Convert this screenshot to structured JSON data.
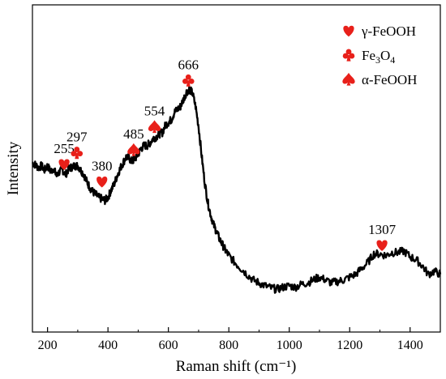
{
  "chart_data": {
    "type": "line",
    "title": "",
    "xlabel": "Raman shift (cm⁻¹)",
    "ylabel": "Intensity",
    "xlim": [
      150,
      1500
    ],
    "ylim": [
      0,
      1
    ],
    "y_ticks_labeled": false,
    "x_ticks": [
      200,
      400,
      600,
      800,
      1000,
      1200,
      1400
    ],
    "x_tick_labels": [
      "200",
      "400",
      "600",
      "800",
      "1000",
      "1200",
      "1400"
    ],
    "grid": false,
    "legend_position": "top-right",
    "marker_color": "#e8201a",
    "line_color": "#000000",
    "series": [
      {
        "x": [
          150,
          160,
          170,
          180,
          190,
          200,
          210,
          220,
          230,
          240,
          250,
          260,
          270,
          280,
          290,
          300,
          310,
          320,
          330,
          340,
          350,
          360,
          370,
          380,
          390,
          400,
          410,
          420,
          430,
          440,
          450,
          460,
          470,
          480,
          490,
          500,
          510,
          520,
          530,
          540,
          550,
          560,
          570,
          580,
          590,
          600,
          610,
          620,
          630,
          640,
          650,
          660,
          670,
          680,
          690,
          700,
          710,
          720,
          730,
          740,
          750,
          760,
          770,
          780,
          790,
          800,
          820,
          840,
          860,
          880,
          900,
          920,
          940,
          960,
          980,
          1000,
          1020,
          1040,
          1060,
          1080,
          1100,
          1120,
          1140,
          1160,
          1180,
          1200,
          1220,
          1240,
          1260,
          1280,
          1300,
          1320,
          1340,
          1360,
          1380,
          1400,
          1420,
          1440,
          1460,
          1480,
          1500
        ],
        "values": [
          0.515,
          0.508,
          0.498,
          0.505,
          0.49,
          0.505,
          0.485,
          0.495,
          0.47,
          0.485,
          0.49,
          0.475,
          0.495,
          0.5,
          0.505,
          0.505,
          0.49,
          0.475,
          0.45,
          0.43,
          0.415,
          0.405,
          0.395,
          0.39,
          0.385,
          0.395,
          0.42,
          0.44,
          0.47,
          0.495,
          0.515,
          0.535,
          0.53,
          0.52,
          0.53,
          0.545,
          0.565,
          0.575,
          0.575,
          0.585,
          0.6,
          0.605,
          0.615,
          0.62,
          0.645,
          0.655,
          0.665,
          0.69,
          0.7,
          0.71,
          0.735,
          0.76,
          0.77,
          0.755,
          0.71,
          0.64,
          0.54,
          0.45,
          0.38,
          0.335,
          0.3,
          0.275,
          0.25,
          0.23,
          0.21,
          0.195,
          0.17,
          0.15,
          0.13,
          0.11,
          0.1,
          0.09,
          0.082,
          0.078,
          0.085,
          0.09,
          0.085,
          0.095,
          0.1,
          0.11,
          0.12,
          0.11,
          0.1,
          0.105,
          0.11,
          0.12,
          0.13,
          0.15,
          0.17,
          0.2,
          0.2,
          0.195,
          0.205,
          0.205,
          0.21,
          0.19,
          0.18,
          0.16,
          0.13,
          0.14,
          0.13
        ]
      }
    ],
    "legend": [
      {
        "symbol": "heart",
        "label_base": "γ-FeOOH",
        "sub": "",
        "tail": ""
      },
      {
        "symbol": "club",
        "label_base": "Fe",
        "sub": "3",
        "tail": "O",
        "sub2": "4"
      },
      {
        "symbol": "spade",
        "label_base": "α-FeOOH",
        "sub": "",
        "tail": ""
      }
    ],
    "annotations": [
      {
        "x": 255,
        "value": 0.51,
        "label": "255",
        "symbol": "heart"
      },
      {
        "x": 297,
        "value": 0.55,
        "label": "297",
        "symbol": "club"
      },
      {
        "x": 380,
        "value": 0.45,
        "label": "380",
        "symbol": "heart"
      },
      {
        "x": 485,
        "value": 0.56,
        "label": "485",
        "symbol": "spade"
      },
      {
        "x": 554,
        "value": 0.64,
        "label": "554",
        "symbol": "spade"
      },
      {
        "x": 666,
        "value": 0.8,
        "label": "666",
        "symbol": "club"
      },
      {
        "x": 1307,
        "value": 0.23,
        "label": "1307",
        "symbol": "heart"
      }
    ]
  }
}
